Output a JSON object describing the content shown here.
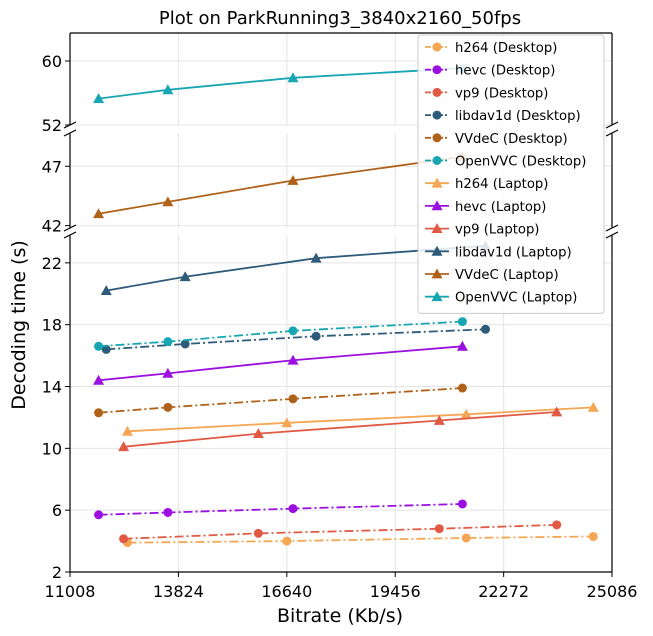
{
  "chart_data": {
    "type": "line",
    "title": "Plot on ParkRunning3_3840x2160_50fps",
    "xlabel": "Bitrate (Kb/s)",
    "ylabel": "Decoding time (s)",
    "xlim": [
      11008,
      25086
    ],
    "x_ticks": [
      "11008",
      "13824",
      "16640",
      "19456",
      "22272",
      "25086"
    ],
    "broken_y_axis": true,
    "y_panels": [
      {
        "ylim": [
          52,
          63.5
        ],
        "ticks": [
          "52",
          "60"
        ]
      },
      {
        "ylim": [
          41.8,
          49.8
        ],
        "ticks": [
          "42",
          "47"
        ]
      },
      {
        "ylim": [
          2,
          23.8
        ],
        "ticks": [
          "2",
          "6",
          "10",
          "14",
          "18",
          "22"
        ]
      }
    ],
    "grid": true,
    "legend_position": "top-right",
    "series": [
      {
        "name": "h264 (Desktop)",
        "color": "#f4a653",
        "linestyle": "dash-dot",
        "marker": "circle",
        "x": [
          12500,
          16640,
          21300,
          24600
        ],
        "y": [
          3.9,
          4.0,
          4.2,
          4.3
        ]
      },
      {
        "name": "hevc (Desktop)",
        "color": "#9b0fe0",
        "linestyle": "dash-dot",
        "marker": "circle",
        "x": [
          11750,
          13550,
          16800,
          21200
        ],
        "y": [
          5.7,
          5.85,
          6.1,
          6.4
        ]
      },
      {
        "name": "vp9 (Desktop)",
        "color": "#e05a44",
        "linestyle": "dash-dot",
        "marker": "circle",
        "x": [
          12400,
          15900,
          20600,
          23650
        ],
        "y": [
          4.15,
          4.5,
          4.8,
          5.05
        ]
      },
      {
        "name": "libdav1d (Desktop)",
        "color": "#2e5b7a",
        "linestyle": "dash-dot",
        "marker": "circle",
        "x": [
          11950,
          14000,
          17400,
          21800
        ],
        "y": [
          16.4,
          16.75,
          17.25,
          17.7
        ]
      },
      {
        "name": "VVdeC (Desktop)",
        "color": "#b0621a",
        "linestyle": "dash-dot",
        "marker": "circle",
        "x": [
          11750,
          13550,
          16800,
          21200
        ],
        "y": [
          12.3,
          12.65,
          13.2,
          13.9
        ]
      },
      {
        "name": "OpenVVC (Desktop)",
        "color": "#17a6b2",
        "linestyle": "dash-dot",
        "marker": "circle",
        "x": [
          11750,
          13550,
          16800,
          21200
        ],
        "y": [
          16.6,
          16.9,
          17.6,
          18.2
        ]
      },
      {
        "name": "h264 (Laptop)",
        "color": "#f4a653",
        "linestyle": "solid",
        "marker": "triangle",
        "x": [
          12500,
          16640,
          21300,
          24600
        ],
        "y": [
          11.1,
          11.65,
          12.2,
          12.65
        ]
      },
      {
        "name": "hevc (Laptop)",
        "color": "#9b0fe0",
        "linestyle": "solid",
        "marker": "triangle",
        "x": [
          11750,
          13550,
          16800,
          21200
        ],
        "y": [
          14.4,
          14.85,
          15.7,
          16.6
        ]
      },
      {
        "name": "vp9 (Laptop)",
        "color": "#e05a44",
        "linestyle": "solid",
        "marker": "triangle",
        "x": [
          12400,
          15900,
          20600,
          23650
        ],
        "y": [
          10.1,
          10.95,
          11.8,
          12.35
        ]
      },
      {
        "name": "libdav1d (Laptop)",
        "color": "#2e5b7a",
        "linestyle": "solid",
        "marker": "triangle",
        "x": [
          11950,
          14000,
          17400,
          21800
        ],
        "y": [
          20.2,
          21.1,
          22.3,
          23.1
        ]
      },
      {
        "name": "VVdeC (Laptop)",
        "color": "#b0621a",
        "linestyle": "solid",
        "marker": "triangle",
        "x": [
          11750,
          13550,
          16800,
          21200
        ],
        "y": [
          43.0,
          44.0,
          45.8,
          47.8
        ]
      },
      {
        "name": "OpenVVC (Laptop)",
        "color": "#17a6b2",
        "linestyle": "solid",
        "marker": "triangle",
        "x": [
          11750,
          13550,
          16800,
          21200
        ],
        "y": [
          55.3,
          56.4,
          57.9,
          59.1
        ]
      }
    ]
  }
}
